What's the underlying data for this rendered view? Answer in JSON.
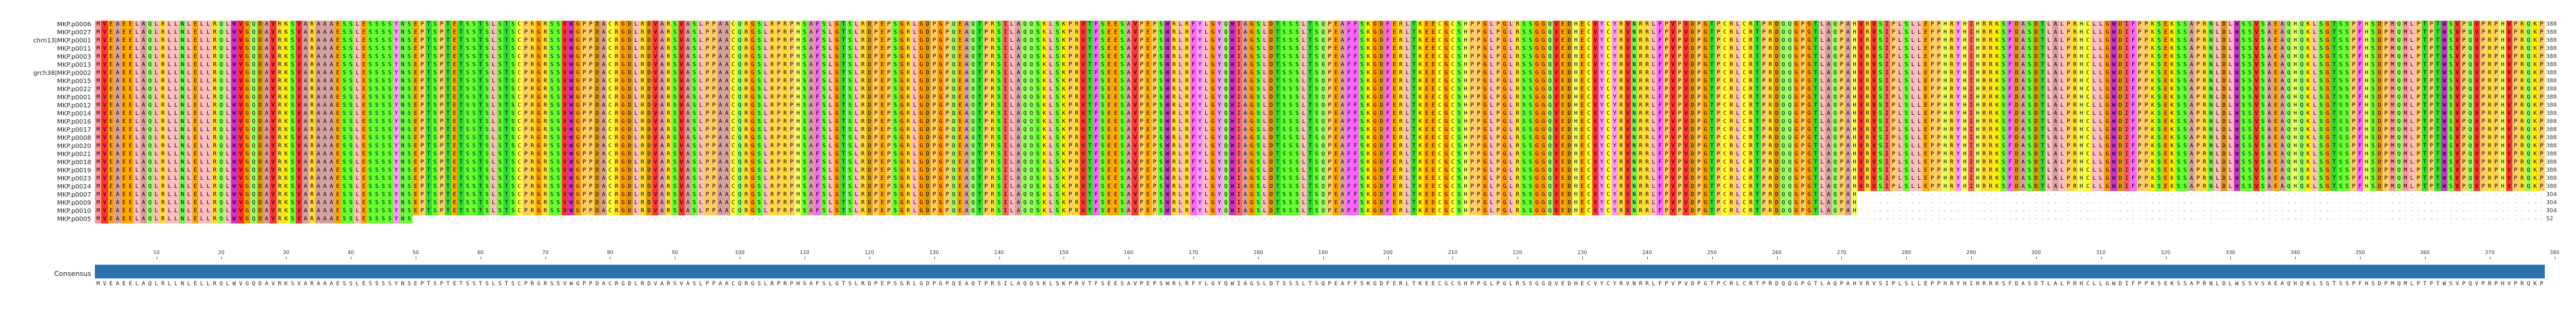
{
  "rows": [
    {
      "name": "MKP.p0006",
      "len": "388",
      "truncate": 1.0
    },
    {
      "name": "MKP.p0027",
      "len": "388",
      "truncate": 1.0
    },
    {
      "name": "chrn13|MKP.p0001",
      "len": "388",
      "truncate": 1.0
    },
    {
      "name": "MKP.p0011",
      "len": "388",
      "truncate": 1.0
    },
    {
      "name": "MKP.p0003",
      "len": "388",
      "truncate": 1.0
    },
    {
      "name": "MKP.p0013",
      "len": "388",
      "truncate": 1.0
    },
    {
      "name": "grch38|MKP.p0002",
      "len": "388",
      "truncate": 1.0
    },
    {
      "name": "MKP.p0015",
      "len": "388",
      "truncate": 1.0
    },
    {
      "name": "MKP.p0022",
      "len": "388",
      "truncate": 1.0
    },
    {
      "name": "MKP.p0001",
      "len": "388",
      "truncate": 1.0
    },
    {
      "name": "MKP.p0012",
      "len": "388",
      "truncate": 1.0
    },
    {
      "name": "MKP.p0014",
      "len": "388",
      "truncate": 1.0
    },
    {
      "name": "MKP.p0016",
      "len": "388",
      "truncate": 1.0
    },
    {
      "name": "MKP.p0017",
      "len": "388",
      "truncate": 1.0
    },
    {
      "name": "MKP.p0008",
      "len": "388",
      "truncate": 1.0
    },
    {
      "name": "MKP.p0020",
      "len": "388",
      "truncate": 1.0
    },
    {
      "name": "MKP.p0021",
      "len": "388",
      "truncate": 1.0
    },
    {
      "name": "MKP.p0018",
      "len": "388",
      "truncate": 1.0
    },
    {
      "name": "MKP.p0019",
      "len": "388",
      "truncate": 1.0
    },
    {
      "name": "MKP.p0023",
      "len": "388",
      "truncate": 1.0
    },
    {
      "name": "MKP.p0024",
      "len": "388",
      "truncate": 1.0
    },
    {
      "name": "MKP.p0007",
      "len": "304",
      "truncate": 0.72
    },
    {
      "name": "MKP.p0009",
      "len": "304",
      "truncate": 0.72
    },
    {
      "name": "MKP.p0010",
      "len": "304",
      "truncate": 0.72
    },
    {
      "name": "MKP.p0005",
      "len": "52",
      "truncate": 0.13
    }
  ],
  "consensus": {
    "label": "Consensus",
    "sequence": "MVEAEELAQLRLLNLELLRQLWVGQDAVRKSVARAAAESSLESSSSYNSEPTSPTETSSTSLSTSCPRGRSSVWGPPDACRGDLRDVARSVASLPPAACQRGSLRPRPHSAFSLGTSLRDPEPSGRLGDPGPQEAQTPRSILAQQSKLSKPRVTFSEESAVPEPSWRLRFYLGYQWIAGSLDTSSSLTSQPEAFFSKGDFERLTKEECGCSHPPGLPGLRSSGGQVEDHECVYCYRVNRRLFPVPVDPGTPCRLCRTPRDQQGPGTLAQPAHVRVSIPLSLLEPPHRYHIHRRKSFDASDTLALPRHCLLGWDIFPPKSEKSSAPRNLDLWSSVSAEAQHQKLSGTSSPFHSDPMQMLPTPTWSVPQVPRPHVPRQKP",
    "ruler": [
      "10",
      "20",
      "30",
      "40",
      "50",
      "60",
      "70",
      "80",
      "90",
      "100",
      "110",
      "120",
      "130",
      "140",
      "150",
      "160",
      "170",
      "180",
      "190",
      "200",
      "210",
      "220",
      "230",
      "240",
      "250",
      "260",
      "270",
      "280",
      "290",
      "300",
      "310",
      "320",
      "330",
      "340",
      "350",
      "360",
      "370",
      "380"
    ]
  },
  "colors": {
    "A": "#d7a0a0",
    "V": "#ff3333",
    "L": "#ffbdbd",
    "I": "#ff6060",
    "M": "#ff9999",
    "F": "#ff66ff",
    "W": "#cc33cc",
    "Y": "#ff99ff",
    "S": "#66ff33",
    "T": "#33dd33",
    "N": "#77ee55",
    "Q": "#99ff66",
    "D": "#dd9911",
    "E": "#ffaa00",
    "K": "#ffee00",
    "R": "#ffdd33",
    "H": "#eeff66",
    "G": "#ff9900",
    "P": "#ffcc66",
    "C": "#ffff33",
    "gap": "#ffffff"
  }
}
